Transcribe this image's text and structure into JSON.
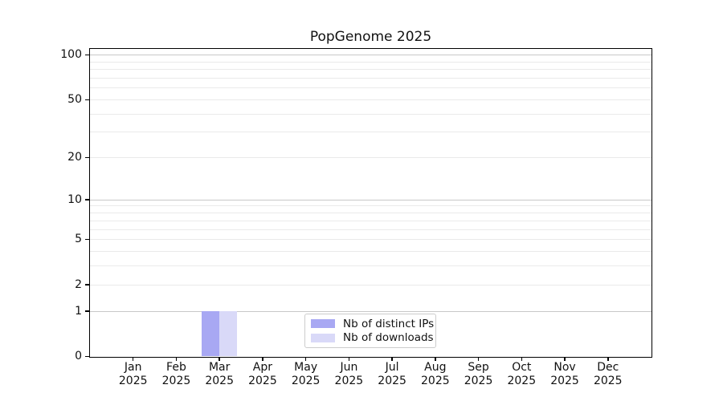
{
  "page": {
    "background": "#ffffff"
  },
  "chart_data": {
    "type": "bar",
    "title": "PopGenome 2025",
    "x_categories": [
      {
        "month": "Jan",
        "year": "2025"
      },
      {
        "month": "Feb",
        "year": "2025"
      },
      {
        "month": "Mar",
        "year": "2025"
      },
      {
        "month": "Apr",
        "year": "2025"
      },
      {
        "month": "May",
        "year": "2025"
      },
      {
        "month": "Jun",
        "year": "2025"
      },
      {
        "month": "Jul",
        "year": "2025"
      },
      {
        "month": "Aug",
        "year": "2025"
      },
      {
        "month": "Sep",
        "year": "2025"
      },
      {
        "month": "Oct",
        "year": "2025"
      },
      {
        "month": "Nov",
        "year": "2025"
      },
      {
        "month": "Dec",
        "year": "2025"
      }
    ],
    "series": [
      {
        "name": "Nb of distinct IPs",
        "color": "#a8a8f3",
        "values": [
          0,
          0,
          1,
          0,
          0,
          0,
          0,
          0,
          0,
          0,
          0,
          0
        ]
      },
      {
        "name": "Nb of downloads",
        "color": "#d9d9f8",
        "values": [
          0,
          0,
          1,
          0,
          0,
          0,
          0,
          0,
          0,
          0,
          0,
          0
        ]
      }
    ],
    "y_axis": {
      "scale": "log10(value+1)",
      "ylim": [
        0,
        110
      ],
      "ticks": [
        {
          "value": 0,
          "label": "0"
        },
        {
          "value": 1,
          "label": "1"
        },
        {
          "value": 2,
          "label": "2"
        },
        {
          "value": 5,
          "label": "5"
        },
        {
          "value": 10,
          "label": "10"
        },
        {
          "value": 20,
          "label": "20"
        },
        {
          "value": 50,
          "label": "50"
        },
        {
          "value": 100,
          "label": "100"
        }
      ],
      "major_gridlines": [
        1,
        10,
        100
      ],
      "minor_gridlines": [
        2,
        3,
        4,
        5,
        6,
        7,
        8,
        9,
        20,
        30,
        40,
        50,
        60,
        70,
        80,
        90
      ]
    },
    "grid": "horizontal",
    "legend_position": "lower center",
    "colors": {
      "major_grid": "#c8c8c8",
      "minor_grid": "#eaeaea",
      "axis": "#000000",
      "text": "#111111"
    }
  }
}
